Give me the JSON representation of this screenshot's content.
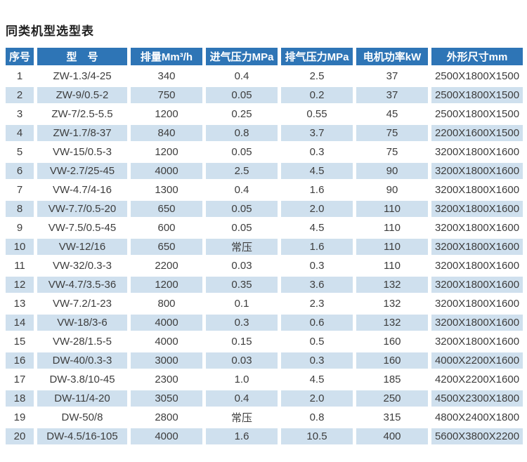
{
  "page": {
    "title": "同类机型选型表"
  },
  "colors": {
    "header_bg": "#2e75b6",
    "header_text": "#ffffff",
    "row_alt_bg": "#cfe0ee",
    "body_text": "#3d3d3d"
  },
  "table": {
    "headers": [
      "序号",
      "型　号",
      "排量Mm³/h",
      "进气压力MPa",
      "排气压力MPa",
      "电机功率kW",
      "外形尺寸mm"
    ],
    "rows": [
      [
        "1",
        "ZW-1.3/4-25",
        "340",
        "0.4",
        "2.5",
        "37",
        "2500X1800X1500"
      ],
      [
        "2",
        "ZW-9/0.5-2",
        "750",
        "0.05",
        "0.2",
        "37",
        "2500X1800X1500"
      ],
      [
        "3",
        "ZW-7/2.5-5.5",
        "1200",
        "0.25",
        "0.55",
        "45",
        "2500X1800X1500"
      ],
      [
        "4",
        "ZW-1.7/8-37",
        "840",
        "0.8",
        "3.7",
        "75",
        "2200X1600X1500"
      ],
      [
        "5",
        "VW-15/0.5-3",
        "1200",
        "0.05",
        "0.3",
        "75",
        "3200X1800X1600"
      ],
      [
        "6",
        "VW-2.7/25-45",
        "4000",
        "2.5",
        "4.5",
        "90",
        "3200X1800X1600"
      ],
      [
        "7",
        "VW-4.7/4-16",
        "1300",
        "0.4",
        "1.6",
        "90",
        "3200X1800X1600"
      ],
      [
        "8",
        "VW-7.7/0.5-20",
        "650",
        "0.05",
        "2.0",
        "110",
        "3200X1800X1600"
      ],
      [
        "9",
        "VW-7.5/0.5-45",
        "600",
        "0.05",
        "4.5",
        "110",
        "3200X1800X1600"
      ],
      [
        "10",
        "VW-12/16",
        "650",
        "常压",
        "1.6",
        "110",
        "3200X1800X1600"
      ],
      [
        "11",
        "VW-32/0.3-3",
        "2200",
        "0.03",
        "0.3",
        "110",
        "3200X1800X1600"
      ],
      [
        "12",
        "VW-4.7/3.5-36",
        "1200",
        "0.35",
        "3.6",
        "132",
        "3200X1800X1600"
      ],
      [
        "13",
        "VW-7.2/1-23",
        "800",
        "0.1",
        "2.3",
        "132",
        "3200X1800X1600"
      ],
      [
        "14",
        "VW-18/3-6",
        "4000",
        "0.3",
        "0.6",
        "132",
        "3200X1800X1600"
      ],
      [
        "15",
        "VW-28/1.5-5",
        "4000",
        "0.15",
        "0.5",
        "160",
        "3200X1800X1600"
      ],
      [
        "16",
        "DW-40/0.3-3",
        "3000",
        "0.03",
        "0.3",
        "160",
        "4000X2200X1600"
      ],
      [
        "17",
        "DW-3.8/10-45",
        "2300",
        "1.0",
        "4.5",
        "185",
        "4200X2200X1600"
      ],
      [
        "18",
        "DW-11/4-20",
        "3050",
        "0.4",
        "2.0",
        "250",
        "4500X2300X1800"
      ],
      [
        "19",
        "DW-50/8",
        "2800",
        "常压",
        "0.8",
        "315",
        "4800X2400X1800"
      ],
      [
        "20",
        "DW-4.5/16-105",
        "4000",
        "1.6",
        "10.5",
        "400",
        "5600X3800X2200"
      ]
    ]
  }
}
